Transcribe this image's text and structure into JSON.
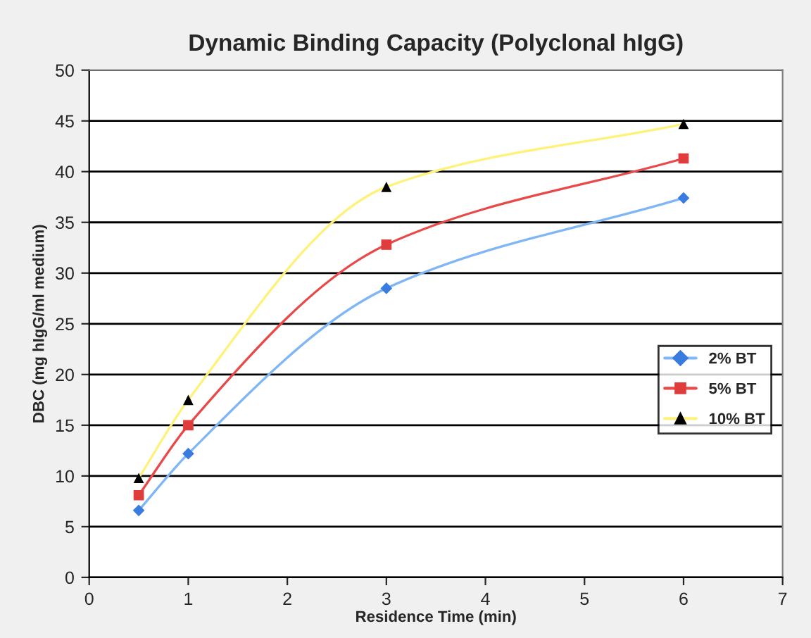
{
  "chart_data": {
    "type": "line",
    "title": "Dynamic Binding Capacity (Polyclonal hIgG)",
    "xlabel": "Residence Time (min)",
    "ylabel": "DBC (mg hIgG/ml medium)",
    "x": [
      0.5,
      1,
      3,
      6
    ],
    "series": [
      {
        "name": "2% BT",
        "color": "#7fb6f5",
        "colors": [
          "#3a7be0",
          "#3a7be0",
          "#3a7be0",
          "#3a7be0"
        ],
        "marker": "diamond",
        "values": [
          6.6,
          12.2,
          28.5,
          37.4
        ]
      },
      {
        "name": "5% BT",
        "color": "#e84a4a",
        "colors": [
          "#e03c3c",
          "#e03c3c",
          "#e03c3c",
          "#e03c3c"
        ],
        "marker": "square",
        "values": [
          8.1,
          15.0,
          32.8,
          41.3
        ]
      },
      {
        "name": "10% BT",
        "color": "#fff27a",
        "colors": [
          "#000000",
          "#000000",
          "#000000",
          "#000000"
        ],
        "marker": "triangle",
        "values": [
          9.8,
          17.5,
          38.5,
          44.7
        ]
      }
    ],
    "xlim": [
      0,
      7
    ],
    "xticks": [
      0,
      1,
      2,
      3,
      4,
      5,
      6,
      7
    ],
    "ylim": [
      0,
      50
    ],
    "yticks": [
      0,
      5,
      10,
      15,
      20,
      25,
      30,
      35,
      40,
      45,
      50
    ],
    "grid": "y",
    "legend": "right",
    "line_style": "solid"
  }
}
